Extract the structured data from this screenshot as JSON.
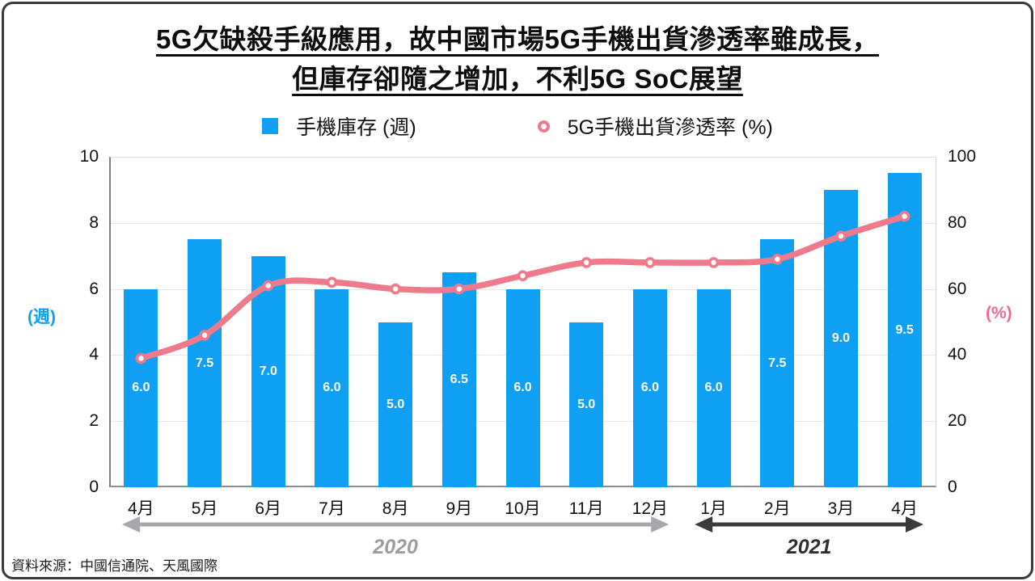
{
  "title": {
    "line1": "5G欠缺殺手級應用，故中國市場5G手機出貨滲透率雖成長，",
    "line2": "但庫存卻隨之增加，不利5G SoC展望"
  },
  "legend": {
    "bars_label": "手機庫存 (週)",
    "line_label": "5G手機出貨滲透率 (%)"
  },
  "chart_data": {
    "type": "bar+line combo",
    "categories": [
      "4月",
      "5月",
      "6月",
      "7月",
      "8月",
      "9月",
      "10月",
      "11月",
      "12月",
      "1月",
      "2月",
      "3月",
      "4月"
    ],
    "series": [
      {
        "name": "手機庫存 (週)",
        "type": "bar",
        "axis": "left",
        "color": "#0fa0f3",
        "values": [
          6.0,
          7.5,
          7.0,
          6.0,
          5.0,
          6.5,
          6.0,
          5.0,
          6.0,
          6.0,
          7.5,
          9.0,
          9.5
        ]
      },
      {
        "name": "5G手機出貨滲透率 (%)",
        "type": "line",
        "axis": "right",
        "color": "#ee7a8b",
        "values": [
          39,
          46,
          61,
          62,
          60,
          60,
          64,
          68,
          68,
          68,
          69,
          76,
          82
        ]
      }
    ],
    "left_axis": {
      "label": "(週)",
      "ticks": [
        0,
        2,
        4,
        6,
        8,
        10
      ],
      "range": [
        0,
        10
      ],
      "color": "#0fa0f3"
    },
    "right_axis": {
      "label": "(%)",
      "ticks": [
        0,
        20,
        40,
        60,
        80,
        100
      ],
      "range": [
        0,
        100
      ],
      "color": "#f06a8a"
    },
    "x_groups": [
      {
        "label": "2020",
        "from": 0,
        "to": 8,
        "arrow_color": "#a8a8ac",
        "label_color": "#9c9ca0"
      },
      {
        "label": "2021",
        "from": 9,
        "to": 12,
        "arrow_color": "#3b3b3d",
        "label_color": "#2f2f31"
      }
    ],
    "grid": true,
    "legend_position": "top"
  },
  "source": "資料來源：中國信通院、天風國際"
}
